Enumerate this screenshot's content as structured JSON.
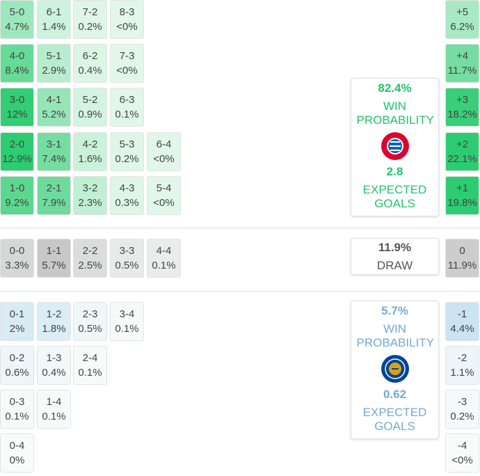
{
  "home_rows": [
    [
      {
        "score": "5-0",
        "prob": "4.7%"
      },
      {
        "score": "6-1",
        "prob": "1.4%"
      },
      {
        "score": "7-2",
        "prob": "0.2%"
      },
      {
        "score": "8-3",
        "prob": "<0%"
      }
    ],
    [
      {
        "score": "4-0",
        "prob": "8.4%"
      },
      {
        "score": "5-1",
        "prob": "2.9%"
      },
      {
        "score": "6-2",
        "prob": "0.4%"
      },
      {
        "score": "7-3",
        "prob": "<0%"
      }
    ],
    [
      {
        "score": "3-0",
        "prob": "12%"
      },
      {
        "score": "4-1",
        "prob": "5.2%"
      },
      {
        "score": "5-2",
        "prob": "0.9%"
      },
      {
        "score": "6-3",
        "prob": "0.1%"
      }
    ],
    [
      {
        "score": "2-0",
        "prob": "12.9%"
      },
      {
        "score": "3-1",
        "prob": "7.4%"
      },
      {
        "score": "4-2",
        "prob": "1.6%"
      },
      {
        "score": "5-3",
        "prob": "0.2%"
      },
      {
        "score": "6-4",
        "prob": "<0%"
      }
    ],
    [
      {
        "score": "1-0",
        "prob": "9.2%"
      },
      {
        "score": "2-1",
        "prob": "7.9%"
      },
      {
        "score": "3-2",
        "prob": "2.3%"
      },
      {
        "score": "4-3",
        "prob": "0.3%"
      },
      {
        "score": "5-4",
        "prob": "<0%"
      }
    ]
  ],
  "draw_row": [
    {
      "score": "0-0",
      "prob": "3.3%"
    },
    {
      "score": "1-1",
      "prob": "5.7%"
    },
    {
      "score": "2-2",
      "prob": "2.5%"
    },
    {
      "score": "3-3",
      "prob": "0.5%"
    },
    {
      "score": "4-4",
      "prob": "0.1%"
    }
  ],
  "away_rows": [
    [
      {
        "score": "0-1",
        "prob": "2%"
      },
      {
        "score": "1-2",
        "prob": "1.8%"
      },
      {
        "score": "2-3",
        "prob": "0.5%"
      },
      {
        "score": "3-4",
        "prob": "0.1%"
      }
    ],
    [
      {
        "score": "0-2",
        "prob": "0.6%"
      },
      {
        "score": "1-3",
        "prob": "0.4%"
      },
      {
        "score": "2-4",
        "prob": "0.1%"
      }
    ],
    [
      {
        "score": "0-3",
        "prob": "0.1%"
      },
      {
        "score": "1-4",
        "prob": "0.1%"
      }
    ],
    [
      {
        "score": "0-4",
        "prob": "0%"
      }
    ]
  ],
  "margins": [
    {
      "label": "+5",
      "prob": "6.2%"
    },
    {
      "label": "+4",
      "prob": "11.7%"
    },
    {
      "label": "+3",
      "prob": "18.2%"
    },
    {
      "label": "+2",
      "prob": "22.1%"
    },
    {
      "label": "+1",
      "prob": "19.8%"
    },
    {
      "label": "0",
      "prob": "11.9%"
    },
    {
      "label": "-1",
      "prob": "4.4%"
    },
    {
      "label": "-2",
      "prob": "1.1%"
    },
    {
      "label": "-3",
      "prob": "0.2%"
    },
    {
      "label": "-4",
      "prob": "<0%"
    }
  ],
  "home_card": {
    "win_prob": "82.4%",
    "win_label": "WIN PROBABILITY",
    "xg": "2.8",
    "xg_label": "EXPECTED GOALS"
  },
  "draw_card": {
    "prob": "11.9%",
    "label": "DRAW"
  },
  "away_card": {
    "win_prob": "5.7%",
    "win_label": "WIN PROBABILITY",
    "xg": "0.62",
    "xg_label": "EXPECTED GOALS"
  }
}
